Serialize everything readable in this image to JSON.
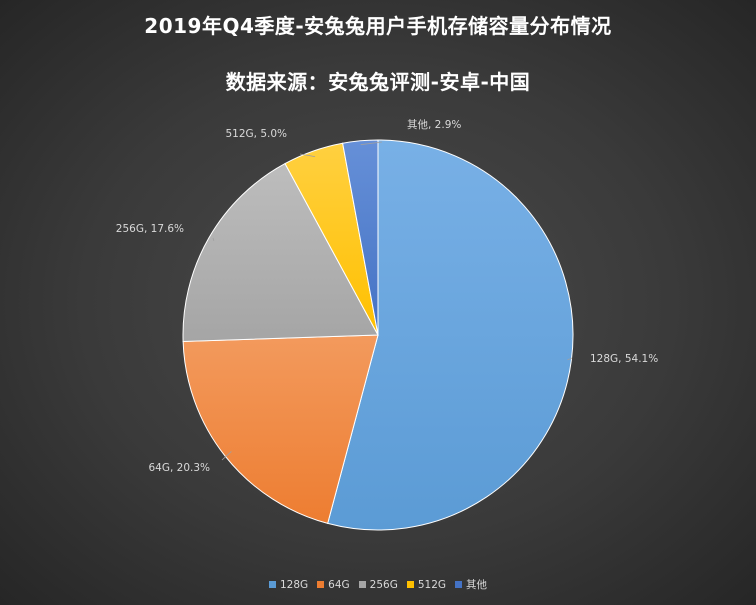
{
  "chart_data": {
    "type": "pie",
    "title": "2019年Q4季度-安兔兔用户手机存储容量分布情况",
    "subtitle": "数据来源：安兔兔评测-安卓-中国",
    "slices": [
      {
        "name": "128G",
        "value": 54.1,
        "label": "128G, 54.1%",
        "color": "#5b9bd5",
        "color_light": "#78b0e6"
      },
      {
        "name": "64G",
        "value": 20.3,
        "label": "64G, 20.3%",
        "color": "#ed7d31",
        "color_light": "#f39a5d"
      },
      {
        "name": "256G",
        "value": 17.6,
        "label": "256G, 17.6%",
        "color": "#a5a5a5",
        "color_light": "#bdbdbd"
      },
      {
        "name": "512G",
        "value": 5.0,
        "label": "512G, 5.0%",
        "color": "#ffc000",
        "color_light": "#ffd040"
      },
      {
        "name": "其他",
        "value": 2.9,
        "label": "其他, 2.9%",
        "color": "#4472c4",
        "color_light": "#6690d8"
      }
    ],
    "legend_position": "bottom"
  }
}
